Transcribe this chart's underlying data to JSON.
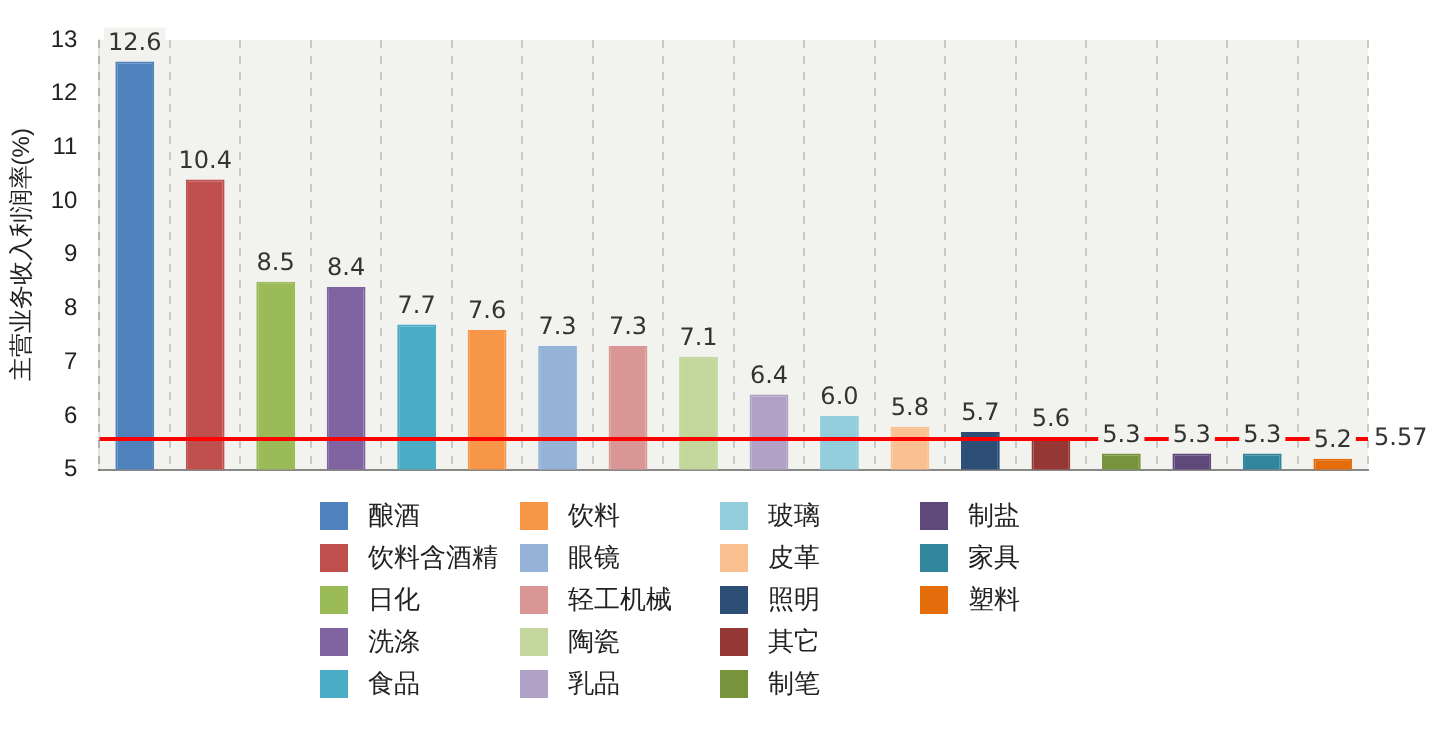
{
  "chart_data": {
    "type": "bar",
    "ylabel": "主营业务收入利润率(%)",
    "categories": [
      null,
      null,
      null,
      null,
      null,
      null,
      null,
      null,
      null,
      null,
      null,
      null,
      null,
      null,
      null,
      null,
      null,
      null
    ],
    "series": [
      {
        "name": "酿酒",
        "color": "#4f81bd",
        "values": [
          12.6,
          null,
          null,
          null,
          null,
          null,
          null,
          null,
          null,
          null,
          null,
          null,
          null,
          null,
          null,
          null,
          null,
          null
        ],
        "value_labels": [
          "12.6",
          null,
          null,
          null,
          null,
          null,
          null,
          null,
          null,
          null,
          null,
          null,
          null,
          null,
          null,
          null,
          null,
          null
        ]
      },
      {
        "name": "饮料含酒精",
        "color": "#c0504d",
        "values": [
          null,
          10.4,
          null,
          null,
          null,
          null,
          null,
          null,
          null,
          null,
          null,
          null,
          null,
          null,
          null,
          null,
          null,
          null
        ],
        "value_labels": [
          null,
          "10.4",
          null,
          null,
          null,
          null,
          null,
          null,
          null,
          null,
          null,
          null,
          null,
          null,
          null,
          null,
          null,
          null
        ]
      },
      {
        "name": "日化",
        "color": "#9bbb59",
        "values": [
          null,
          null,
          8.5,
          null,
          null,
          null,
          null,
          null,
          null,
          null,
          null,
          null,
          null,
          null,
          null,
          null,
          null,
          null
        ],
        "value_labels": [
          null,
          null,
          "8.5",
          null,
          null,
          null,
          null,
          null,
          null,
          null,
          null,
          null,
          null,
          null,
          null,
          null,
          null,
          null
        ]
      },
      {
        "name": "洗涤",
        "color": "#8064a2",
        "values": [
          null,
          null,
          null,
          8.4,
          null,
          null,
          null,
          null,
          null,
          null,
          null,
          null,
          null,
          null,
          null,
          null,
          null,
          null
        ],
        "value_labels": [
          null,
          null,
          null,
          "8.4",
          null,
          null,
          null,
          null,
          null,
          null,
          null,
          null,
          null,
          null,
          null,
          null,
          null,
          null
        ]
      },
      {
        "name": "食品",
        "color": "#4bacc6",
        "values": [
          null,
          null,
          null,
          null,
          7.7,
          null,
          null,
          null,
          null,
          null,
          null,
          null,
          null,
          null,
          null,
          null,
          null,
          null
        ],
        "value_labels": [
          null,
          null,
          null,
          null,
          "7.7",
          null,
          null,
          null,
          null,
          null,
          null,
          null,
          null,
          null,
          null,
          null,
          null,
          null
        ]
      },
      {
        "name": "饮料",
        "color": "#f79646",
        "values": [
          null,
          null,
          null,
          null,
          null,
          7.6,
          null,
          null,
          null,
          null,
          null,
          null,
          null,
          null,
          null,
          null,
          null,
          null
        ],
        "value_labels": [
          null,
          null,
          null,
          null,
          null,
          "7.6",
          null,
          null,
          null,
          null,
          null,
          null,
          null,
          null,
          null,
          null,
          null,
          null
        ]
      },
      {
        "name": "眼镜",
        "color": "#95b3d7",
        "values": [
          null,
          null,
          null,
          null,
          null,
          null,
          7.3,
          null,
          null,
          null,
          null,
          null,
          null,
          null,
          null,
          null,
          null,
          null
        ],
        "value_labels": [
          null,
          null,
          null,
          null,
          null,
          null,
          "7.3",
          null,
          null,
          null,
          null,
          null,
          null,
          null,
          null,
          null,
          null,
          null
        ]
      },
      {
        "name": "轻工机械",
        "color": "#d99694",
        "values": [
          null,
          null,
          null,
          null,
          null,
          null,
          null,
          7.3,
          null,
          null,
          null,
          null,
          null,
          null,
          null,
          null,
          null,
          null
        ],
        "value_labels": [
          null,
          null,
          null,
          null,
          null,
          null,
          null,
          "7.3",
          null,
          null,
          null,
          null,
          null,
          null,
          null,
          null,
          null,
          null
        ]
      },
      {
        "name": "陶瓷",
        "color": "#c3d69b",
        "values": [
          null,
          null,
          null,
          null,
          null,
          null,
          null,
          null,
          7.1,
          null,
          null,
          null,
          null,
          null,
          null,
          null,
          null,
          null
        ],
        "value_labels": [
          null,
          null,
          null,
          null,
          null,
          null,
          null,
          null,
          "7.1",
          null,
          null,
          null,
          null,
          null,
          null,
          null,
          null,
          null
        ]
      },
      {
        "name": "乳品",
        "color": "#b2a1c7",
        "values": [
          null,
          null,
          null,
          null,
          null,
          null,
          null,
          null,
          null,
          6.4,
          null,
          null,
          null,
          null,
          null,
          null,
          null,
          null
        ],
        "value_labels": [
          null,
          null,
          null,
          null,
          null,
          null,
          null,
          null,
          null,
          "6.4",
          null,
          null,
          null,
          null,
          null,
          null,
          null,
          null
        ]
      },
      {
        "name": "玻璃",
        "color": "#92cddc",
        "values": [
          null,
          null,
          null,
          null,
          null,
          null,
          null,
          null,
          null,
          null,
          6.0,
          null,
          null,
          null,
          null,
          null,
          null,
          null
        ],
        "value_labels": [
          null,
          null,
          null,
          null,
          null,
          null,
          null,
          null,
          null,
          null,
          "6.0",
          null,
          null,
          null,
          null,
          null,
          null,
          null
        ]
      },
      {
        "name": "皮革",
        "color": "#fac08f",
        "values": [
          null,
          null,
          null,
          null,
          null,
          null,
          null,
          null,
          null,
          null,
          null,
          5.8,
          null,
          null,
          null,
          null,
          null,
          null
        ],
        "value_labels": [
          null,
          null,
          null,
          null,
          null,
          null,
          null,
          null,
          null,
          null,
          null,
          "5.8",
          null,
          null,
          null,
          null,
          null,
          null
        ]
      },
      {
        "name": "照明",
        "color": "#2c4d75",
        "values": [
          null,
          null,
          null,
          null,
          null,
          null,
          null,
          null,
          null,
          null,
          null,
          null,
          5.7,
          null,
          null,
          null,
          null,
          null
        ],
        "value_labels": [
          null,
          null,
          null,
          null,
          null,
          null,
          null,
          null,
          null,
          null,
          null,
          null,
          "5.7",
          null,
          null,
          null,
          null,
          null
        ]
      },
      {
        "name": "其它",
        "color": "#953735",
        "values": [
          null,
          null,
          null,
          null,
          null,
          null,
          null,
          null,
          null,
          null,
          null,
          null,
          null,
          5.6,
          null,
          null,
          null,
          null
        ],
        "value_labels": [
          null,
          null,
          null,
          null,
          null,
          null,
          null,
          null,
          null,
          null,
          null,
          null,
          null,
          "5.6",
          null,
          null,
          null,
          null
        ]
      },
      {
        "name": "制笔",
        "color": "#77933c",
        "values": [
          null,
          null,
          null,
          null,
          null,
          null,
          null,
          null,
          null,
          null,
          null,
          null,
          null,
          null,
          5.3,
          null,
          null,
          null
        ],
        "value_labels": [
          null,
          null,
          null,
          null,
          null,
          null,
          null,
          null,
          null,
          null,
          null,
          null,
          null,
          null,
          "5.3",
          null,
          null,
          null
        ]
      },
      {
        "name": "制盐",
        "color": "#5f497a",
        "values": [
          null,
          null,
          null,
          null,
          null,
          null,
          null,
          null,
          null,
          null,
          null,
          null,
          null,
          null,
          null,
          5.3,
          null,
          null
        ],
        "value_labels": [
          null,
          null,
          null,
          null,
          null,
          null,
          null,
          null,
          null,
          null,
          null,
          null,
          null,
          null,
          null,
          "5.3",
          null,
          null
        ]
      },
      {
        "name": "家具",
        "color": "#31859c",
        "values": [
          null,
          null,
          null,
          null,
          null,
          null,
          null,
          null,
          null,
          null,
          null,
          null,
          null,
          null,
          null,
          null,
          5.3,
          null
        ],
        "value_labels": [
          null,
          null,
          null,
          null,
          null,
          null,
          null,
          null,
          null,
          null,
          null,
          null,
          null,
          null,
          null,
          null,
          "5.3",
          null
        ]
      },
      {
        "name": "塑料",
        "color": "#e46c0a",
        "values": [
          null,
          null,
          null,
          null,
          null,
          null,
          null,
          null,
          null,
          null,
          null,
          null,
          null,
          null,
          null,
          null,
          null,
          5.2
        ],
        "value_labels": [
          null,
          null,
          null,
          null,
          null,
          null,
          null,
          null,
          null,
          null,
          null,
          null,
          null,
          null,
          null,
          null,
          null,
          "5.2"
        ]
      }
    ],
    "ylim": [
      5,
      13
    ],
    "yticks": [
      5,
      6,
      7,
      8,
      9,
      10,
      11,
      12,
      13
    ],
    "ref_lines": [
      {
        "axis": "y",
        "value": 5.57,
        "label": "5.57",
        "color": "#ff0000"
      }
    ],
    "grid": "x",
    "legend": "bottom",
    "tick_labels": "y"
  }
}
